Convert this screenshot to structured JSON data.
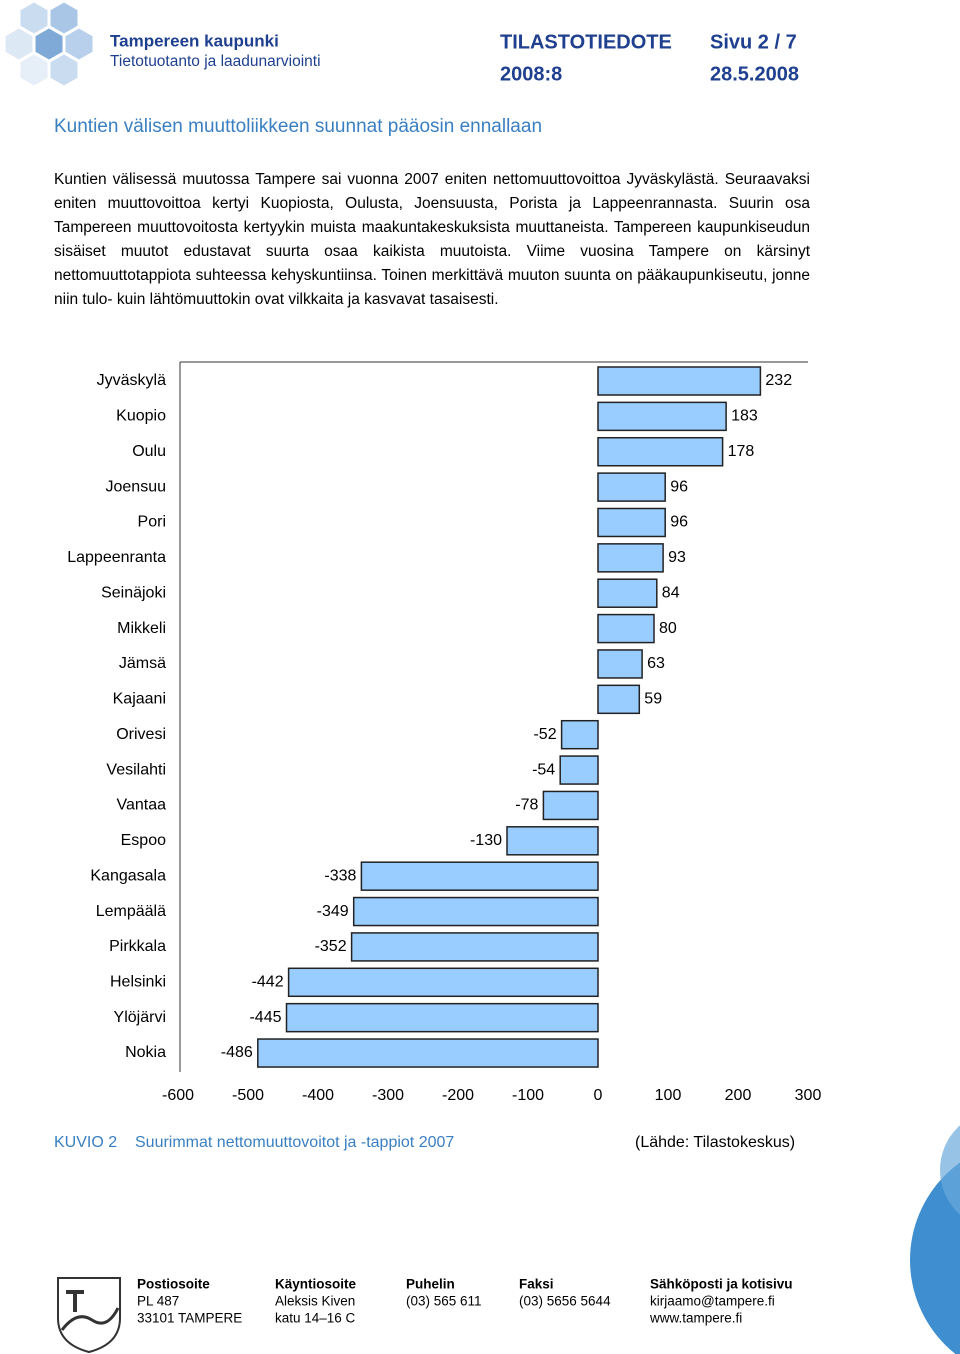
{
  "header": {
    "org": "Tampereen kaupunki",
    "unit": "Tietotuotanto ja laadunarviointi",
    "doc_type": "TILASTOTIEDOTE",
    "page": "Sivu 2 / 7",
    "issue": "2008:8",
    "date": "28.5.2008"
  },
  "heading": "Kuntien välisen muuttoliikkeen suunnat pääosin ennallaan",
  "paragraph": "Kuntien välisessä muutossa Tampere sai vuonna 2007 eniten nettomuuttovoittoa Jyväskylästä. Seuraavaksi eniten muuttovoittoa kertyi Kuopiosta, Oulusta, Joensuusta, Porista ja Lappeenrannasta. Suurin osa Tampereen muuttovoitosta kertyykin muista maakuntakeskuksista muuttaneista. Tampereen kaupunkiseudun sisäiset muutot edustavat suurta osaa kaikista muutoista. Viime vuosina Tampere on kärsinyt nettomuuttotappiota suhteessa kehyskuntiinsa. Toinen merkittävä muuton suunta on pääkaupunkiseutu, jonne niin tulo- kuin lähtömuuttokin ovat vilkkaita ja kasvavat tasaisesti.",
  "chart_data": {
    "type": "bar",
    "horizontal": true,
    "categories": [
      "Jyväskylä",
      "Kuopio",
      "Oulu",
      "Joensuu",
      "Pori",
      "Lappeenranta",
      "Seinäjoki",
      "Mikkeli",
      "Jämsä",
      "Kajaani",
      "Orivesi",
      "Vesilahti",
      "Vantaa",
      "Espoo",
      "Kangasala",
      "Lempäälä",
      "Pirkkala",
      "Helsinki",
      "Ylöjärvi",
      "Nokia"
    ],
    "values": [
      232,
      183,
      178,
      96,
      96,
      93,
      84,
      80,
      63,
      59,
      -52,
      -54,
      -78,
      -130,
      -338,
      -349,
      -352,
      -442,
      -445,
      -486
    ],
    "color": "#99ccff",
    "xlim": [
      -600,
      300
    ],
    "xticks": [
      -600,
      -500,
      -400,
      -300,
      -200,
      -100,
      0,
      100,
      200,
      300
    ]
  },
  "caption": {
    "label": "KUVIO 2",
    "title": "Suurimmat nettomuuttovoitot ja -tappiot 2007",
    "source": "(Lähde: Tilastokeskus)"
  },
  "footer": {
    "columns": [
      {
        "heading": "Postiosoite",
        "lines": [
          "PL 487",
          "33101 TAMPERE"
        ]
      },
      {
        "heading": "Käyntiosoite",
        "lines": [
          "Aleksis Kiven",
          "katu 14–16 C"
        ]
      },
      {
        "heading": "Puhelin",
        "lines": [
          "(03) 565 611"
        ]
      },
      {
        "heading": "Faksi",
        "lines": [
          "(03) 5656 5644"
        ]
      },
      {
        "heading": "Sähköposti ja kotisivu",
        "lines": [
          "kirjaamo@tampere.fi",
          "www.tampere.fi"
        ]
      }
    ]
  }
}
